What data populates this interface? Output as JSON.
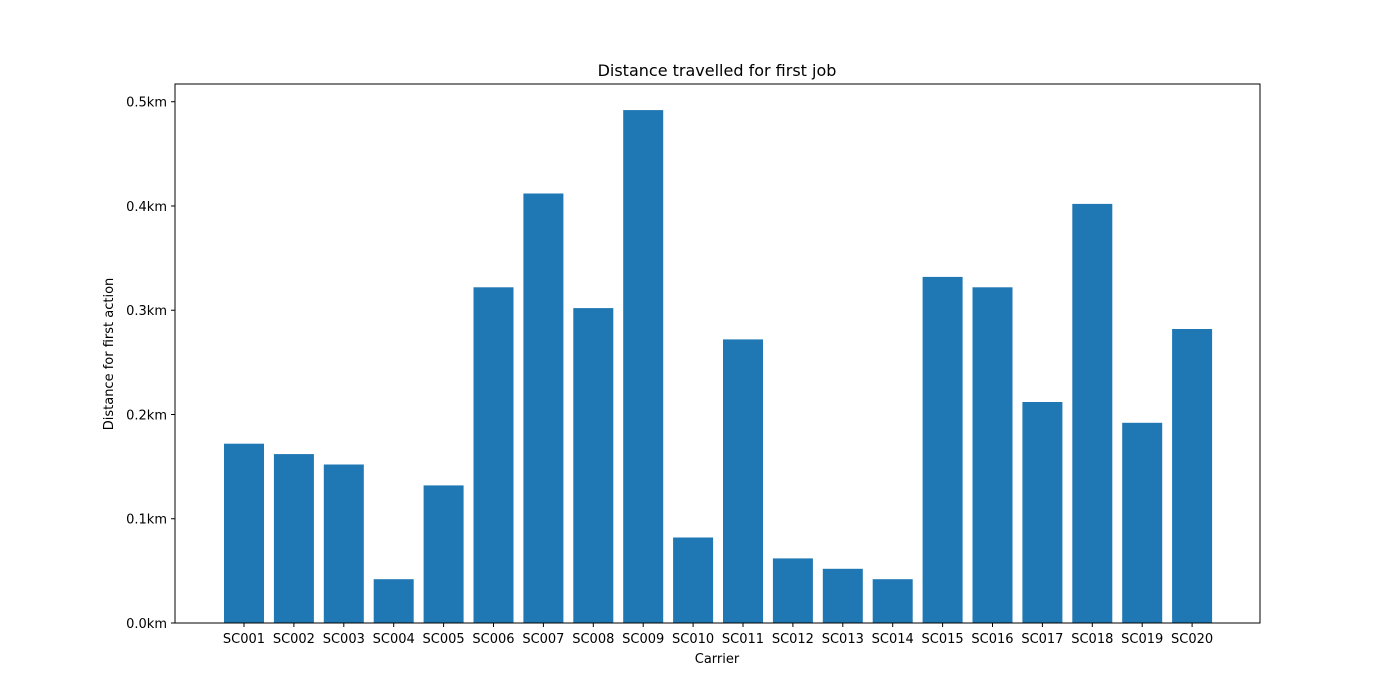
{
  "chart_data": {
    "type": "bar",
    "title": "Distance travelled for first job",
    "xlabel": "Carrier",
    "ylabel": "Distance for first action",
    "categories": [
      "SC001",
      "SC002",
      "SC003",
      "SC004",
      "SC005",
      "SC006",
      "SC007",
      "SC008",
      "SC009",
      "SC010",
      "SC011",
      "SC012",
      "SC013",
      "SC014",
      "SC015",
      "SC016",
      "SC017",
      "SC018",
      "SC019",
      "SC020"
    ],
    "values": [
      0.172,
      0.162,
      0.152,
      0.042,
      0.132,
      0.322,
      0.412,
      0.302,
      0.492,
      0.082,
      0.272,
      0.062,
      0.052,
      0.042,
      0.332,
      0.322,
      0.212,
      0.402,
      0.192,
      0.282
    ],
    "ylim": [
      0,
      0.517
    ],
    "yticks": [
      0.0,
      0.1,
      0.2,
      0.3,
      0.4,
      0.5
    ],
    "ytick_labels": [
      "0.0km",
      "0.1km",
      "0.2km",
      "0.3km",
      "0.4km",
      "0.5km"
    ],
    "bar_color": "#1f77b4",
    "grid": false,
    "legend": "none"
  }
}
